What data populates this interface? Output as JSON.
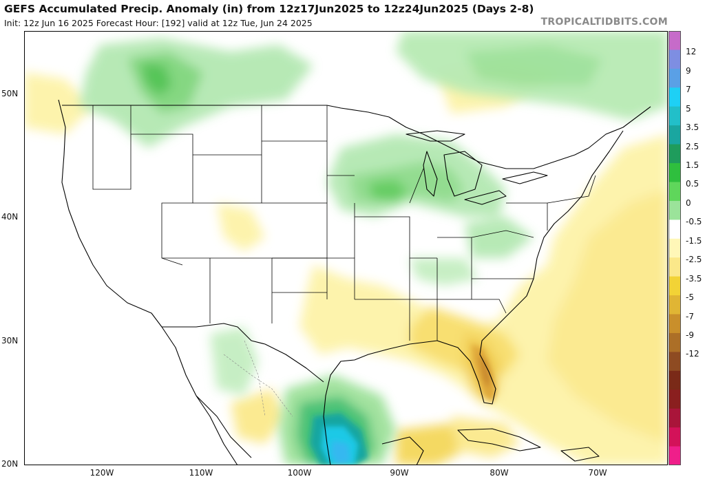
{
  "header": {
    "title": "GEFS Accumulated Precip. Anomaly (in) from 12z17Jun2025 to 12z24Jun2025 (Days 2-8)",
    "subtitle": "Init: 12z Jun 16 2025   Forecast Hour: [192]   valid at 12z Tue, Jun 24 2025",
    "brand": "TROPICALTIDBITS.COM"
  },
  "axes": {
    "lat_labels": [
      "50N",
      "40N",
      "30N",
      "20N"
    ],
    "lon_labels": [
      "120W",
      "110W",
      "100W",
      "90W",
      "80W",
      "70W"
    ]
  },
  "colorbar": {
    "labels": [
      "12",
      "9",
      "7",
      "5",
      "3.5",
      "2.5",
      "1.5",
      "0.5",
      "0",
      "-0.5",
      "-1.5",
      "-2.5",
      "-3.5",
      "-5",
      "-7",
      "-9",
      "-12"
    ],
    "colors": [
      "#c66bc9",
      "#7e8ee2",
      "#5aa0e6",
      "#1ed0f5",
      "#22bfc9",
      "#1aa6a0",
      "#1f9c5c",
      "#2fbf3e",
      "#5fd65b",
      "#9be39a",
      "#ffffff",
      "#fff7b8",
      "#fbe88a",
      "#f2d336",
      "#e0b534",
      "#c98f2b",
      "#ac6f27",
      "#8e4b22",
      "#7a2a18",
      "#8a1f1f",
      "#a9153a",
      "#d31259",
      "#ef1f8a"
    ],
    "color_semantics": "green = wetter than normal, brown = drier than normal"
  }
}
